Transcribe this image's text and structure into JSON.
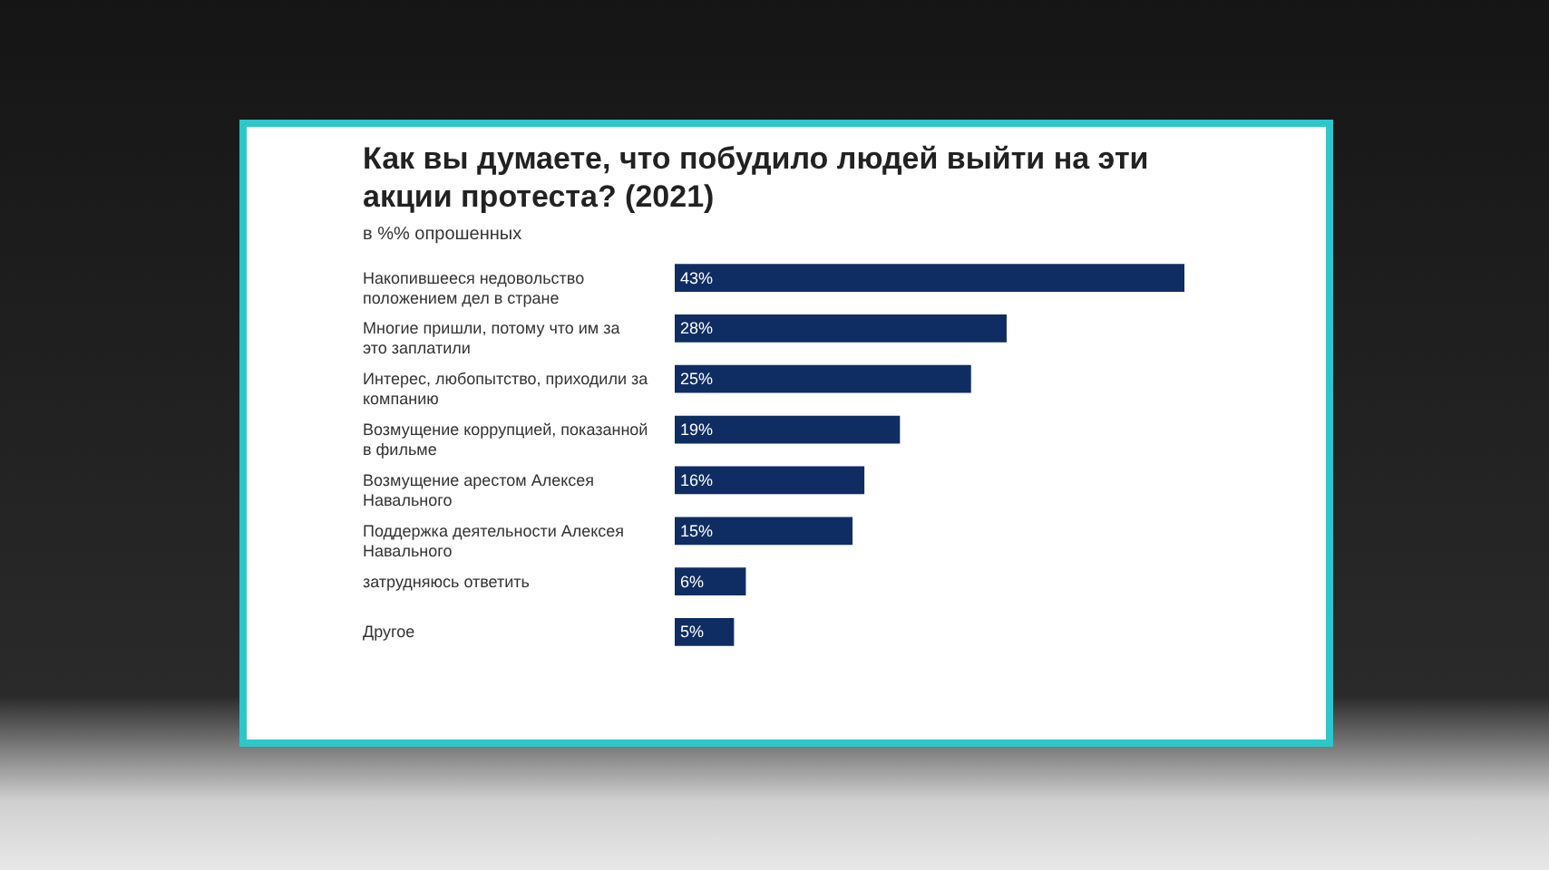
{
  "chart_data": {
    "type": "bar",
    "orientation": "horizontal",
    "title": "Как вы думаете, что побудило людей выйти на эти акции протеста? (2021)",
    "subtitle": "в %% опрошенных",
    "categories": [
      "Накопившееся недовольство положением дел в стране",
      "Многие пришли, потому что им за это заплатили",
      "Интерес, любопытство, приходили за компанию",
      "Возмущение коррупцией, показанной в фильме",
      "Возмущение арестом Алексея Навального",
      "Поддержка деятельности Алексея Навального",
      "затрудняюсь ответить",
      "Другое"
    ],
    "values": [
      43,
      28,
      25,
      19,
      16,
      15,
      6,
      5
    ],
    "value_labels": [
      "43%",
      "28%",
      "25%",
      "19%",
      "16%",
      "15%",
      "6%",
      "5%"
    ],
    "color": "#0f2d62"
  }
}
